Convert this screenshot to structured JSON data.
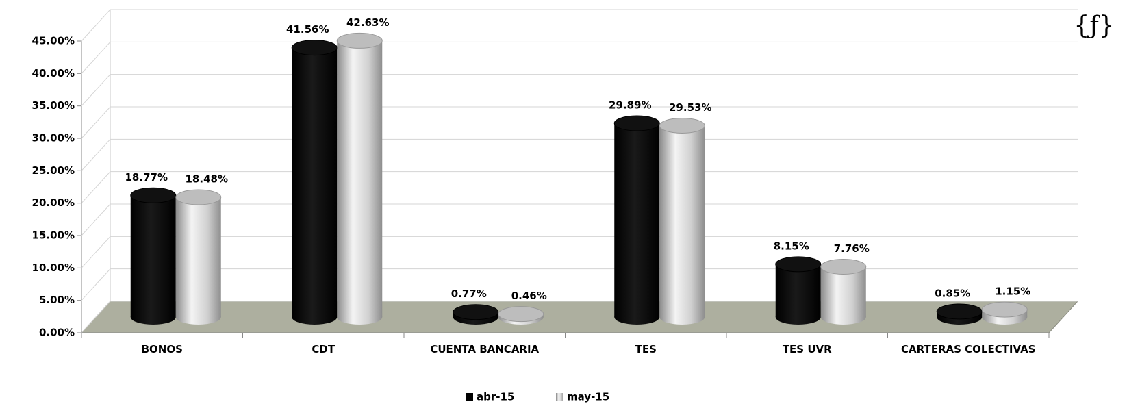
{
  "chart_data": {
    "type": "bar3d",
    "categories": [
      "BONOS",
      "CDT",
      "CUENTA BANCARIA",
      "TES",
      "TES UVR",
      "CARTERAS COLECTIVAS"
    ],
    "series": [
      {
        "name": "abr-15",
        "color": "#000000",
        "values": [
          18.77,
          41.56,
          0.77,
          29.89,
          8.15,
          0.85
        ],
        "value_labels": [
          "18.77%",
          "41.56%",
          "0.77%",
          "29.89%",
          "8.15%",
          "0.85%"
        ]
      },
      {
        "name": "may-15",
        "color": "#c8c8c8",
        "values": [
          18.48,
          42.63,
          0.46,
          29.53,
          7.76,
          1.15
        ],
        "value_labels": [
          "18.48%",
          "42.63%",
          "0.46%",
          "29.53%",
          "7.76%",
          "1.15%"
        ]
      }
    ],
    "ylim": [
      0,
      45
    ],
    "yticks": [
      {
        "value": 0,
        "label": "0.00%"
      },
      {
        "value": 5,
        "label": "5.00%"
      },
      {
        "value": 10,
        "label": "10.00%"
      },
      {
        "value": 15,
        "label": "15.00%"
      },
      {
        "value": 20,
        "label": "20.00%"
      },
      {
        "value": 25,
        "label": "25.00%"
      },
      {
        "value": 30,
        "label": "30.00%"
      },
      {
        "value": 35,
        "label": "35.00%"
      },
      {
        "value": 40,
        "label": "40.00%"
      },
      {
        "value": 45,
        "label": "45.00%"
      }
    ],
    "grid": true,
    "legend": "bottom",
    "annotations": [
      "{ƒ}"
    ]
  }
}
